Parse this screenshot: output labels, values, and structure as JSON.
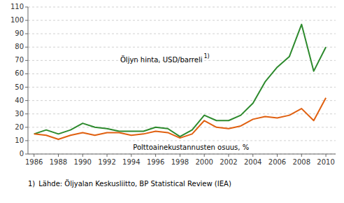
{
  "chart_data": {
    "type": "line",
    "x": [
      1986,
      1987,
      1988,
      1989,
      1990,
      1991,
      1992,
      1993,
      1994,
      1995,
      1996,
      1997,
      1998,
      1999,
      2000,
      2001,
      2002,
      2003,
      2004,
      2005,
      2006,
      2007,
      2008,
      2009,
      2010
    ],
    "series": [
      {
        "color": "#2d8a2d",
        "values": [
          15,
          18,
          15,
          18,
          23,
          20,
          19,
          17,
          17,
          17,
          20,
          19,
          13,
          18,
          29,
          25,
          25,
          29,
          38,
          54,
          65,
          73,
          97,
          62,
          80
        ]
      },
      {
        "color": "#e06010",
        "values": [
          15,
          14,
          11,
          14,
          16,
          14,
          16,
          16,
          14,
          15,
          17,
          16,
          12,
          15,
          25,
          20,
          19,
          21,
          26,
          28,
          27,
          29,
          34,
          25,
          42
        ]
      }
    ],
    "annotations": [
      {
        "text": "Öljyn hinta, USD/barreli",
        "note": "1)"
      },
      {
        "text": "Polttoainekustannusten osuus, %"
      }
    ],
    "footnote": {
      "note": "1)",
      "text": "Lähde: Öljyalan Keskusliitto, BP Statistical Review (IEA)"
    },
    "xlim": [
      1985.5,
      2010.8
    ],
    "xticks": [
      1986,
      1988,
      1990,
      1992,
      1994,
      1996,
      1998,
      2000,
      2002,
      2004,
      2006,
      2008,
      2010
    ],
    "ylim": [
      0,
      110
    ],
    "yticks": [
      0,
      10,
      20,
      30,
      40,
      50,
      60,
      70,
      80,
      90,
      100,
      110
    ],
    "grid": true
  }
}
